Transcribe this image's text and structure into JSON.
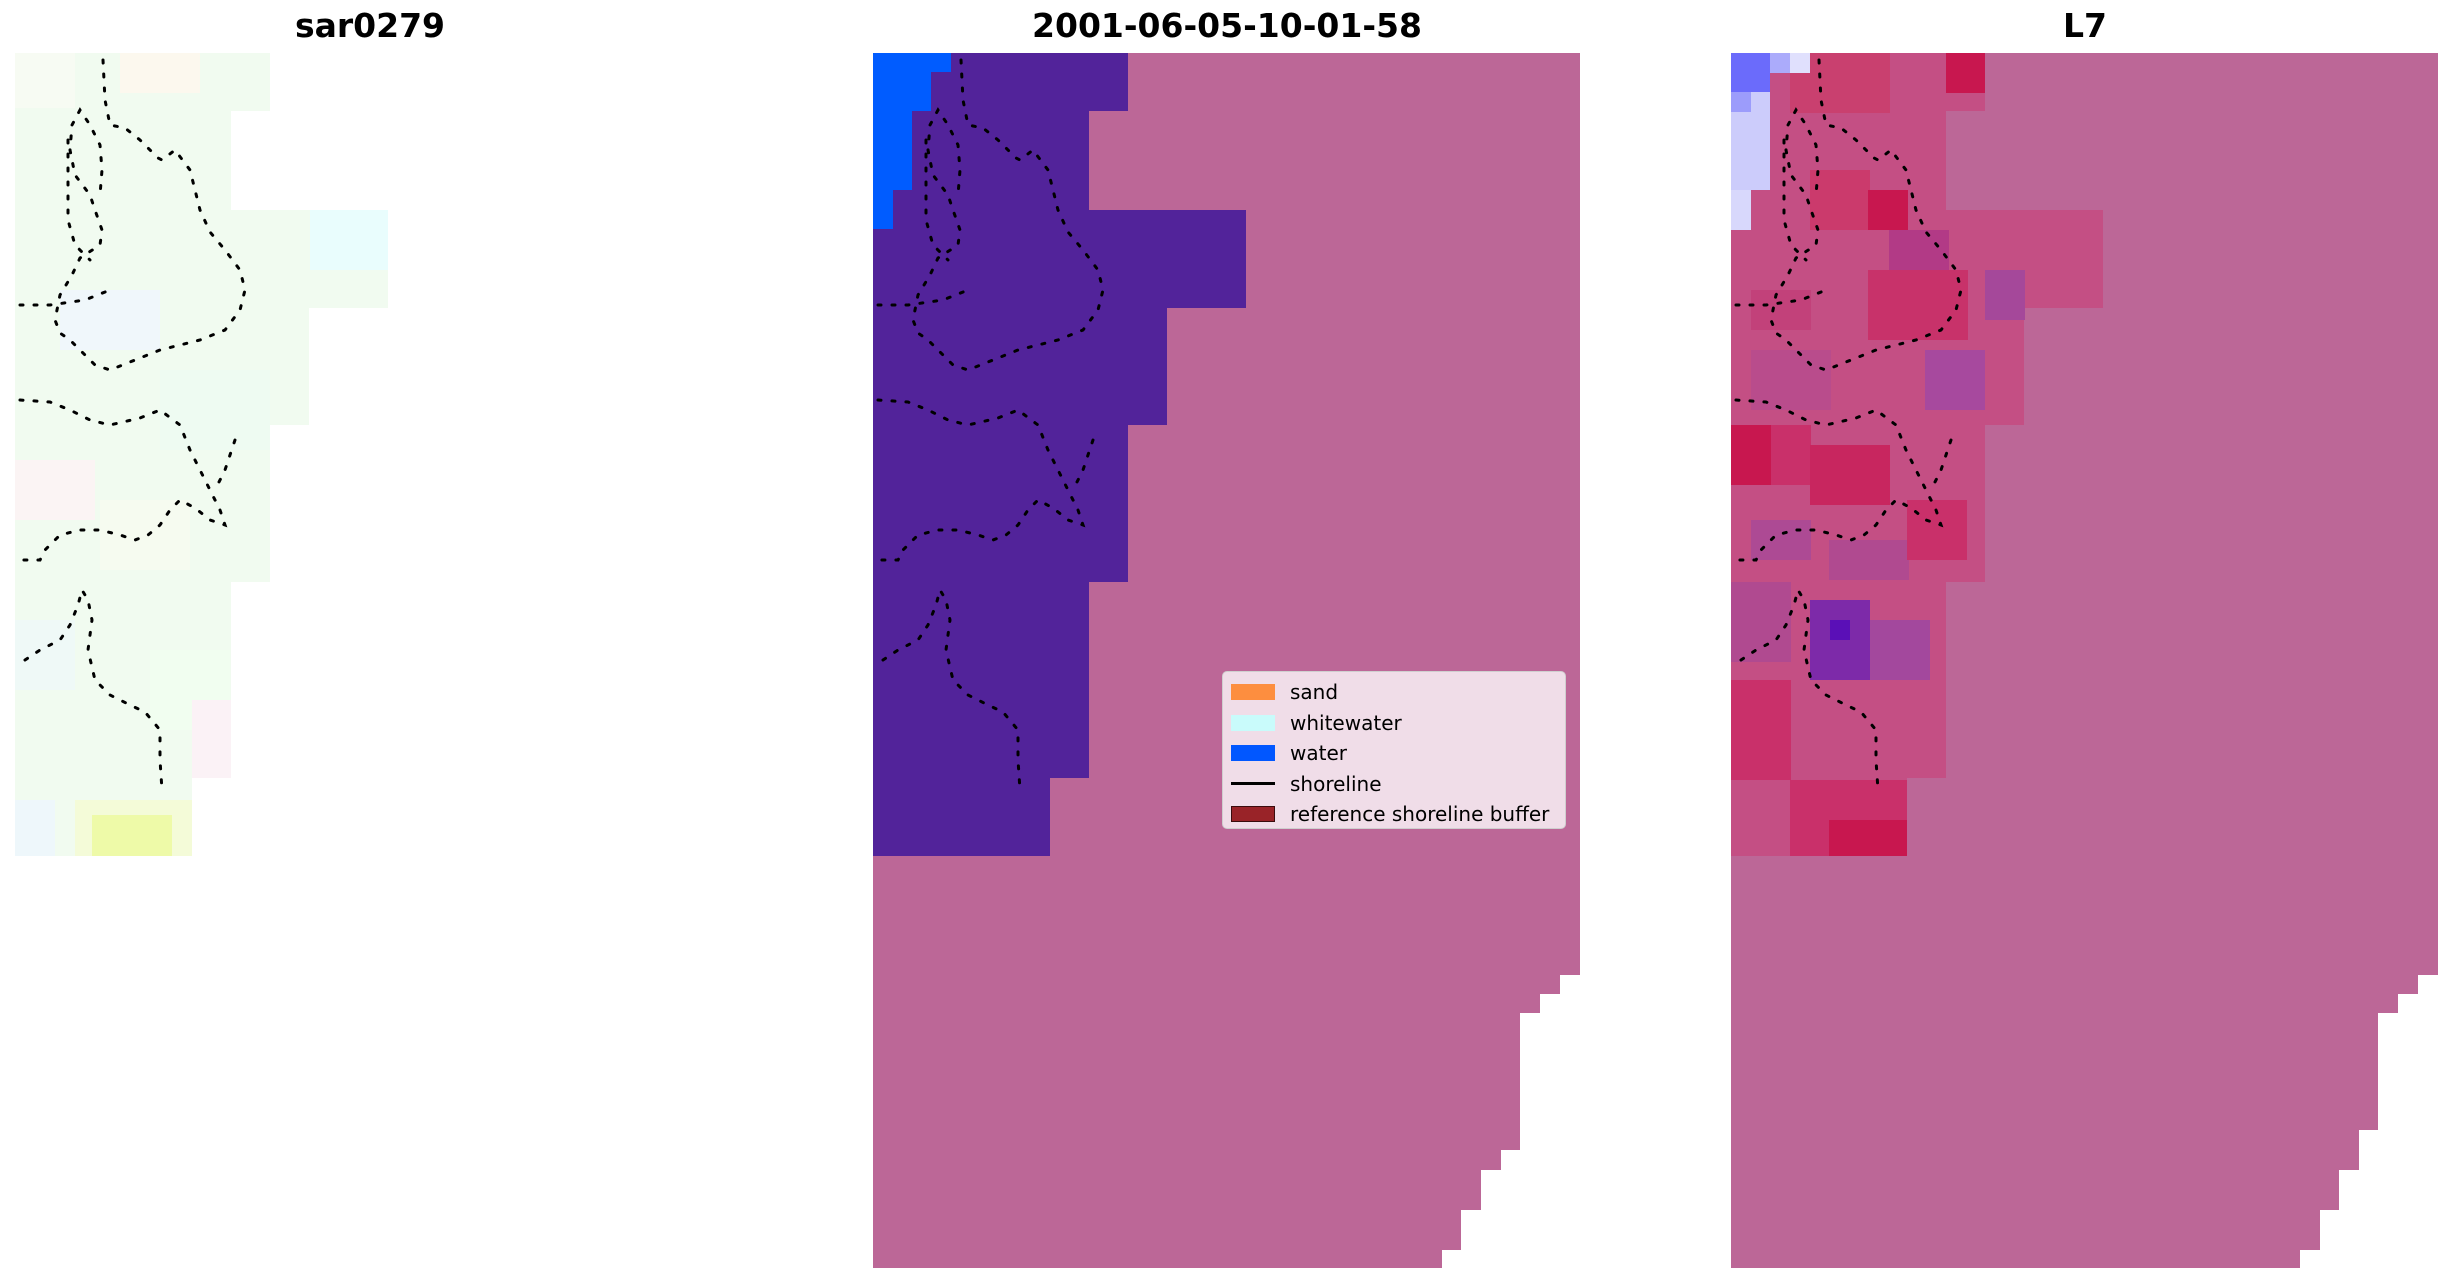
{
  "panels": [
    {
      "title": "sar0279"
    },
    {
      "title": "2001-06-05-10-01-58"
    },
    {
      "title": "L7"
    }
  ],
  "legend": {
    "items": [
      {
        "label": "sand",
        "color": "#fd8e3f",
        "kind": "patch"
      },
      {
        "label": "whitewater",
        "color": "#c9fbfb",
        "kind": "patch"
      },
      {
        "label": "water",
        "color": "#0157ff",
        "kind": "patch"
      },
      {
        "label": "shoreline",
        "color": "#000000",
        "kind": "line"
      },
      {
        "label": "reference shoreline buffer",
        "color": "#992328",
        "kind": "patch-edge"
      }
    ]
  },
  "colors": {
    "classified_land": "#bc6797",
    "classified_water_dark": "#52239a",
    "classified_water_bright": "#005cff",
    "rgb_background": "#f2fbee",
    "rgb_sand_highlight": "#eefaa8",
    "index_background": "#bc6797",
    "index_red": "#c8174f",
    "index_purple": "#5a0fb7",
    "index_blue_light": "#ccccfb",
    "shoreline_points": "#000000"
  }
}
